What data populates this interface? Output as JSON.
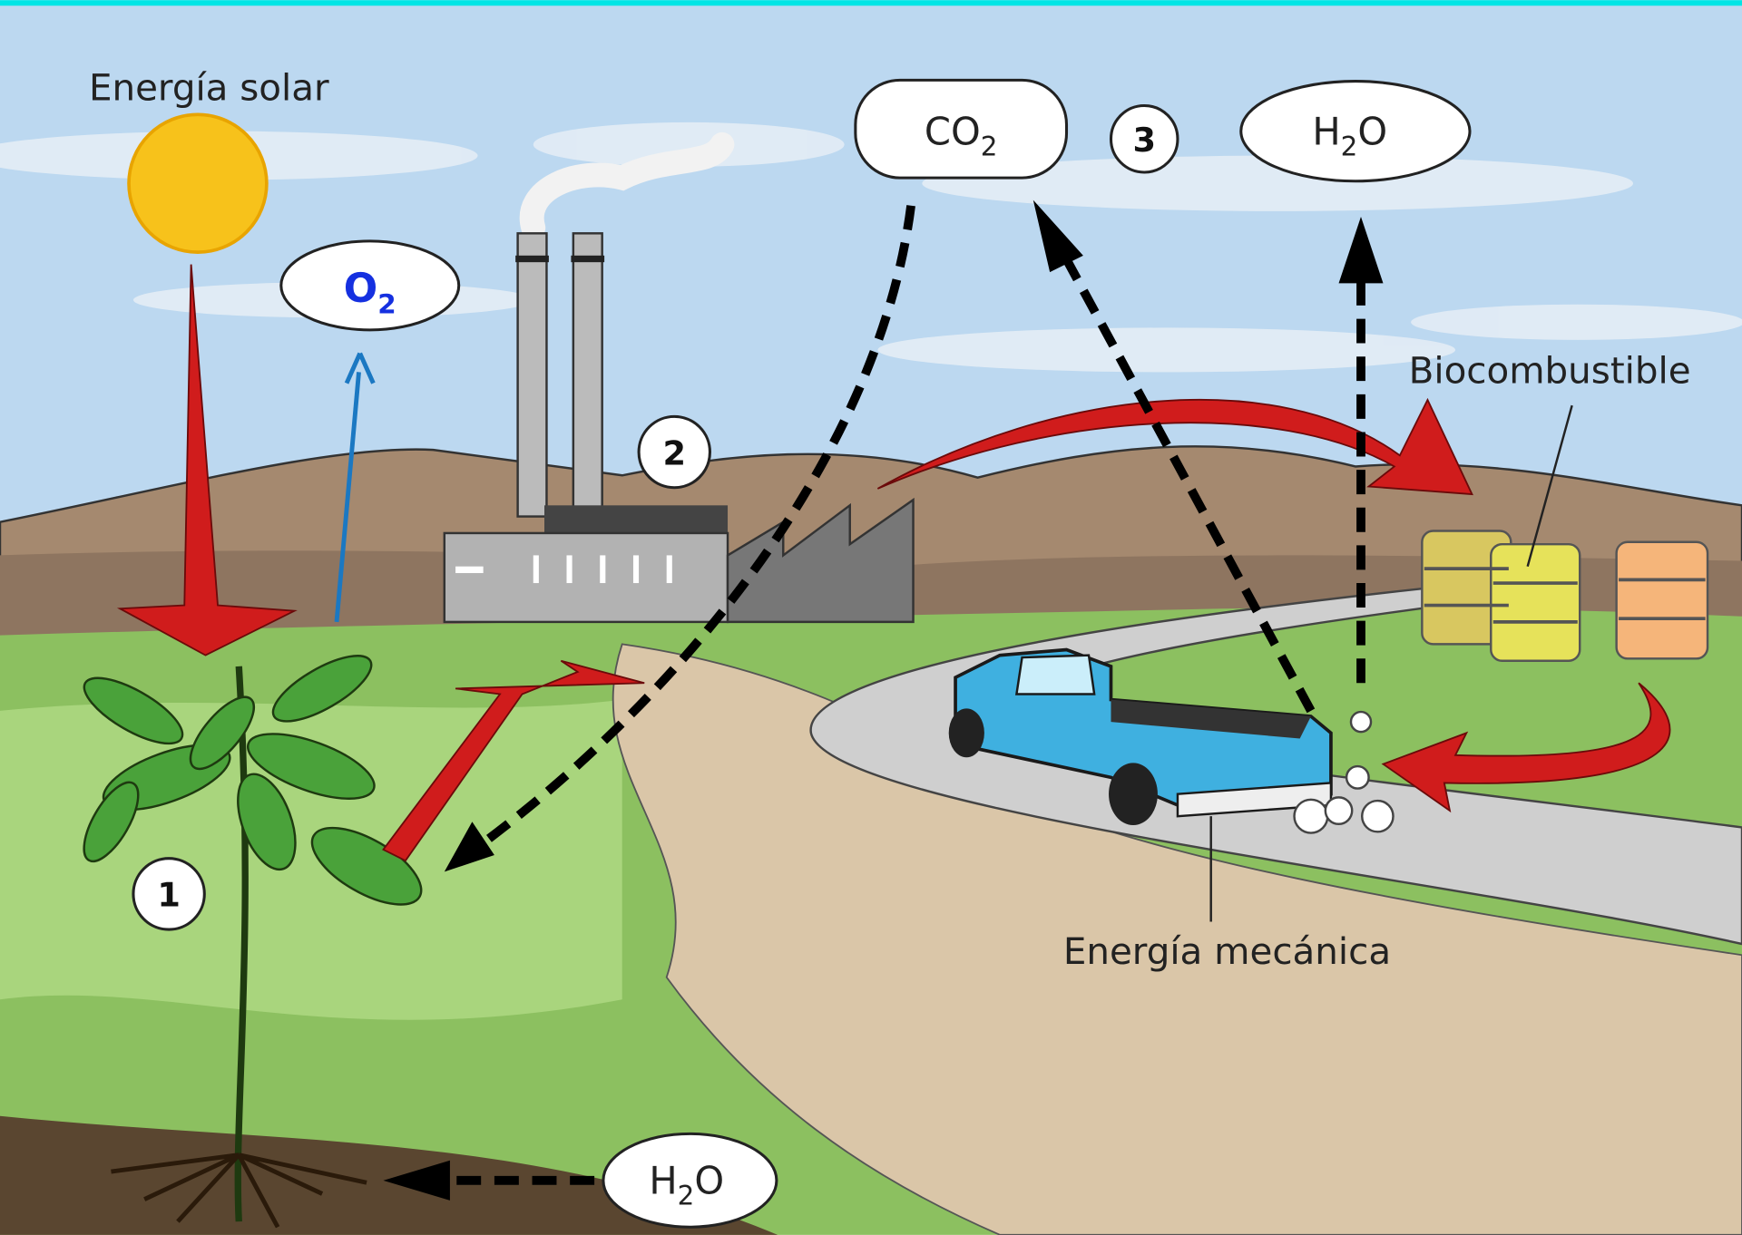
{
  "labels": {
    "solar_energy": "Energía solar",
    "biofuel": "Biocombustible",
    "mechanical_energy": "Energía mecánica"
  },
  "bubbles": {
    "o2": {
      "main": "O",
      "sub": "2"
    },
    "co2": {
      "main": "CO",
      "sub": "2"
    },
    "h2o_top": {
      "main": "H",
      "sub": "2",
      "tail": "O"
    },
    "h2o_bottom": {
      "main": "H",
      "sub": "2",
      "tail": "O"
    }
  },
  "steps": [
    "1",
    "2",
    "3"
  ]
}
